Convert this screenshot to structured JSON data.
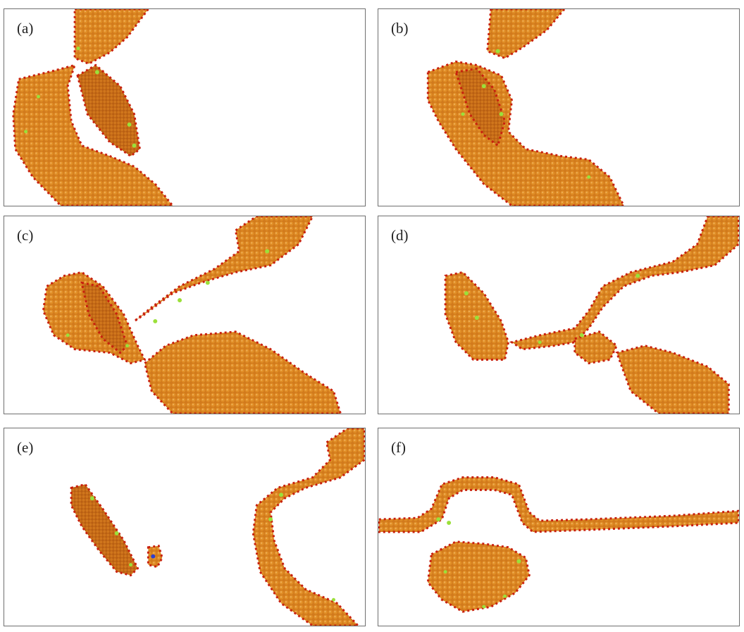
{
  "panels": [
    {
      "id": "a",
      "label": "(a)"
    },
    {
      "id": "b",
      "label": "(b)"
    },
    {
      "id": "c",
      "label": "(c)"
    },
    {
      "id": "d",
      "label": "(d)"
    },
    {
      "id": "e",
      "label": "(e)"
    },
    {
      "id": "f",
      "label": "(f)"
    }
  ],
  "colors": {
    "atom_fill": "#d9861f",
    "atom_edge": "#c23a10",
    "surface_red": "#c8200e",
    "surface_green": "#9be03a",
    "frame": "#6f6f6f"
  }
}
